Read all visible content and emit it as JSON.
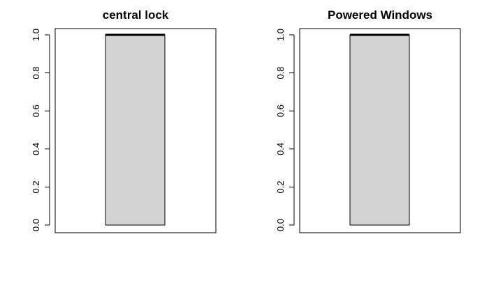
{
  "chart_data": [
    {
      "type": "box",
      "title": "central lock",
      "ylim": [
        0,
        1
      ],
      "yticks": [
        "0.0",
        "0.2",
        "0.4",
        "0.6",
        "0.8",
        "1.0"
      ],
      "box": {
        "min": 0,
        "q1": 0,
        "median": 1,
        "q3": 1,
        "max": 1
      },
      "box_color": "#d3d3d3",
      "grid": false
    },
    {
      "type": "box",
      "title": "Powered Windows",
      "ylim": [
        0,
        1
      ],
      "yticks": [
        "0.0",
        "0.2",
        "0.4",
        "0.6",
        "0.8",
        "1.0"
      ],
      "box": {
        "min": 0,
        "q1": 0,
        "median": 1,
        "q3": 1,
        "max": 1
      },
      "box_color": "#d3d3d3",
      "grid": false
    }
  ]
}
